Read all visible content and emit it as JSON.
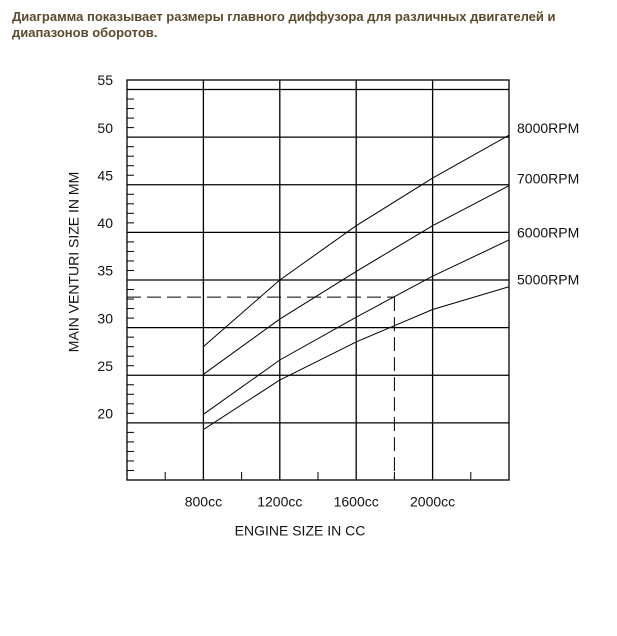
{
  "chart_data": {
    "type": "line",
    "title": "Диаграмма показывает размеры главного диффузора для различных двигателей и диапазонов оборотов.",
    "xlabel": "ENGINE SIZE IN CC",
    "ylabel": "MAIN VENTURI SIZE IN MM",
    "x": [
      800,
      1200,
      1600,
      2000,
      2400
    ],
    "series": [
      {
        "name": "8000RPM",
        "color": "#000000",
        "values": [
          28.0,
          35.0,
          40.7,
          45.7,
          50.2
        ]
      },
      {
        "name": "7000RPM",
        "color": "#000000",
        "values": [
          25.1,
          30.9,
          35.9,
          40.7,
          44.9
        ]
      },
      {
        "name": "6000RPM",
        "color": "#000000",
        "values": [
          20.9,
          26.6,
          31.1,
          35.4,
          39.2
        ]
      },
      {
        "name": "5000RPM",
        "color": "#000000",
        "values": [
          19.3,
          24.5,
          28.5,
          31.9,
          34.3
        ]
      }
    ],
    "guide": {
      "x": 1800,
      "y": 33.2
    },
    "xlim": [
      400,
      2400
    ],
    "ylim": [
      14,
      56
    ],
    "xticks": [
      {
        "value": 800,
        "label": "800cc"
      },
      {
        "value": 1200,
        "label": "1200cc"
      },
      {
        "value": 1600,
        "label": "1600cc"
      },
      {
        "value": 2000,
        "label": "2000cc"
      }
    ],
    "yticks": [
      20,
      25,
      30,
      35,
      40,
      45,
      50,
      55
    ],
    "xminorticks": [
      600,
      1000,
      1400,
      1800,
      2200
    ],
    "yminorticks": [
      15,
      16,
      17,
      18,
      19,
      21,
      22,
      23,
      24,
      26,
      27,
      28,
      29,
      31,
      32,
      33,
      34,
      36,
      37,
      38,
      39,
      41,
      42,
      43,
      44,
      46,
      47,
      48,
      49,
      51,
      52,
      53,
      54
    ],
    "grid": true
  }
}
